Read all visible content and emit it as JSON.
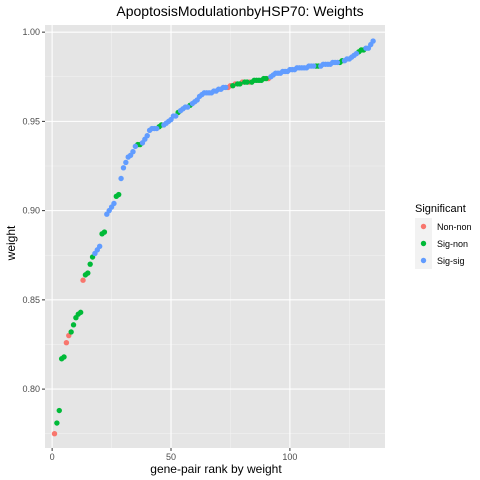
{
  "chart_data": {
    "type": "scatter",
    "title": "ApoptosisModulationbyHSP70: Weights",
    "xlabel": "gene-pair rank by weight",
    "ylabel": "weight",
    "xlim": [
      -3,
      140
    ],
    "ylim": [
      0.767,
      1.004
    ],
    "xticks": [
      0,
      50,
      100
    ],
    "yticks": [
      0.8,
      0.85,
      0.9,
      0.95,
      1.0
    ],
    "ytick_labels": [
      "0.80",
      "0.85",
      "0.90",
      "0.95",
      "1.00"
    ],
    "grid": true,
    "background": "#e5e5e5",
    "legend": {
      "title": "Significant",
      "placement": "right",
      "entries": [
        {
          "label": "Non-non",
          "color": "#f8766d"
        },
        {
          "label": "Sig-non",
          "color": "#00ba38"
        },
        {
          "label": "Sig-sig",
          "color": "#619cff"
        }
      ]
    },
    "series": [
      {
        "name": "Non-non",
        "color": "#f8766d",
        "points": [
          [
            1,
            0.775
          ],
          [
            6,
            0.826
          ],
          [
            7,
            0.83
          ],
          [
            13,
            0.861
          ],
          [
            74,
            0.969
          ],
          [
            75,
            0.97
          ],
          [
            77,
            0.971
          ],
          [
            80,
            0.972
          ],
          [
            83,
            0.972
          ],
          [
            91,
            0.974
          ]
        ]
      },
      {
        "name": "Sig-non",
        "color": "#00ba38",
        "points": [
          [
            2,
            0.781
          ],
          [
            3,
            0.788
          ],
          [
            4,
            0.817
          ],
          [
            5,
            0.818
          ],
          [
            8,
            0.832
          ],
          [
            9,
            0.836
          ],
          [
            10,
            0.84
          ],
          [
            11,
            0.842
          ],
          [
            12,
            0.843
          ],
          [
            14,
            0.864
          ],
          [
            15,
            0.865
          ],
          [
            16,
            0.87
          ],
          [
            17,
            0.874
          ],
          [
            21,
            0.887
          ],
          [
            22,
            0.888
          ],
          [
            27,
            0.908
          ],
          [
            28,
            0.909
          ],
          [
            36,
            0.937
          ],
          [
            37,
            0.937
          ],
          [
            45,
            0.947
          ],
          [
            46,
            0.948
          ],
          [
            53,
            0.955
          ],
          [
            58,
            0.959
          ],
          [
            76,
            0.97
          ],
          [
            78,
            0.971
          ],
          [
            79,
            0.971
          ],
          [
            81,
            0.972
          ],
          [
            82,
            0.972
          ],
          [
            84,
            0.972
          ],
          [
            85,
            0.973
          ],
          [
            86,
            0.973
          ],
          [
            87,
            0.973
          ],
          [
            88,
            0.973
          ],
          [
            89,
            0.974
          ],
          [
            90,
            0.974
          ],
          [
            111,
            0.981
          ],
          [
            112,
            0.981
          ],
          [
            121,
            0.983
          ],
          [
            122,
            0.984
          ],
          [
            129,
            0.989
          ],
          [
            130,
            0.99
          ],
          [
            131,
            0.99
          ]
        ]
      },
      {
        "name": "Sig-sig",
        "color": "#619cff",
        "points": [
          [
            18,
            0.876
          ],
          [
            19,
            0.878
          ],
          [
            20,
            0.88
          ],
          [
            23,
            0.898
          ],
          [
            24,
            0.9
          ],
          [
            25,
            0.902
          ],
          [
            26,
            0.904
          ],
          [
            29,
            0.918
          ],
          [
            30,
            0.924
          ],
          [
            31,
            0.927
          ],
          [
            32,
            0.93
          ],
          [
            33,
            0.931
          ],
          [
            34,
            0.933
          ],
          [
            35,
            0.936
          ],
          [
            38,
            0.938
          ],
          [
            39,
            0.94
          ],
          [
            40,
            0.942
          ],
          [
            41,
            0.945
          ],
          [
            42,
            0.946
          ],
          [
            43,
            0.946
          ],
          [
            44,
            0.946
          ],
          [
            47,
            0.948
          ],
          [
            48,
            0.949
          ],
          [
            49,
            0.95
          ],
          [
            50,
            0.951
          ],
          [
            51,
            0.953
          ],
          [
            52,
            0.953
          ],
          [
            54,
            0.956
          ],
          [
            55,
            0.957
          ],
          [
            56,
            0.958
          ],
          [
            57,
            0.958
          ],
          [
            59,
            0.96
          ],
          [
            60,
            0.961
          ],
          [
            61,
            0.962
          ],
          [
            62,
            0.964
          ],
          [
            63,
            0.965
          ],
          [
            64,
            0.966
          ],
          [
            65,
            0.966
          ],
          [
            66,
            0.966
          ],
          [
            67,
            0.966
          ],
          [
            68,
            0.967
          ],
          [
            69,
            0.967
          ],
          [
            70,
            0.968
          ],
          [
            71,
            0.968
          ],
          [
            72,
            0.969
          ],
          [
            73,
            0.969
          ],
          [
            92,
            0.975
          ],
          [
            93,
            0.976
          ],
          [
            94,
            0.977
          ],
          [
            95,
            0.977
          ],
          [
            96,
            0.977
          ],
          [
            97,
            0.978
          ],
          [
            98,
            0.978
          ],
          [
            99,
            0.978
          ],
          [
            100,
            0.979
          ],
          [
            101,
            0.979
          ],
          [
            102,
            0.979
          ],
          [
            103,
            0.98
          ],
          [
            104,
            0.98
          ],
          [
            105,
            0.98
          ],
          [
            106,
            0.98
          ],
          [
            107,
            0.98
          ],
          [
            108,
            0.981
          ],
          [
            109,
            0.981
          ],
          [
            110,
            0.981
          ],
          [
            113,
            0.981
          ],
          [
            114,
            0.982
          ],
          [
            115,
            0.982
          ],
          [
            116,
            0.982
          ],
          [
            117,
            0.982
          ],
          [
            118,
            0.983
          ],
          [
            119,
            0.983
          ],
          [
            120,
            0.983
          ],
          [
            123,
            0.984
          ],
          [
            124,
            0.985
          ],
          [
            125,
            0.985
          ],
          [
            126,
            0.986
          ],
          [
            127,
            0.987
          ],
          [
            128,
            0.988
          ],
          [
            132,
            0.991
          ],
          [
            133,
            0.991
          ],
          [
            134,
            0.993
          ],
          [
            135,
            0.995
          ]
        ]
      }
    ]
  }
}
